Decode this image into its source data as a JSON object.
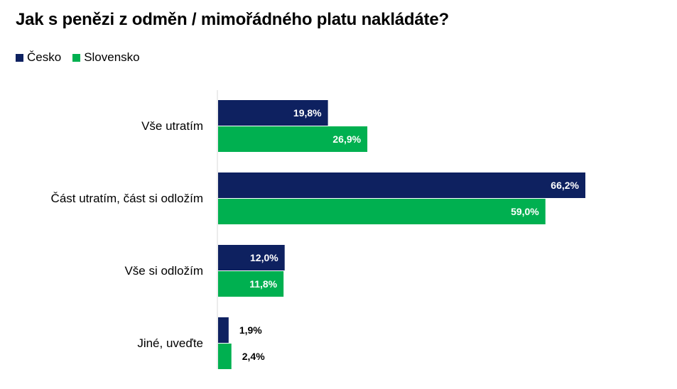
{
  "chart_data": {
    "type": "bar",
    "orientation": "horizontal",
    "title": "Jak s penězi z odměn / mimořádného platu nakládáte?",
    "categories": [
      "Vše utratím",
      "Část utratím, část si odložím",
      "Vše si odložím",
      "Jiné, uveďte"
    ],
    "series": [
      {
        "name": "Česko",
        "color": "#0E2160",
        "values": [
          19.8,
          66.2,
          12.0,
          1.9
        ],
        "labels": [
          "19,8%",
          "66,2%",
          "12,0%",
          "1,9%"
        ]
      },
      {
        "name": "Slovensko",
        "color": "#00B050",
        "values": [
          26.9,
          59.0,
          11.8,
          2.4
        ],
        "labels": [
          "26,9%",
          "59,0%",
          "11,8%",
          "2,4%"
        ]
      }
    ],
    "xlim": [
      0,
      66.2
    ],
    "grid": false,
    "legend_position": "top-left"
  }
}
